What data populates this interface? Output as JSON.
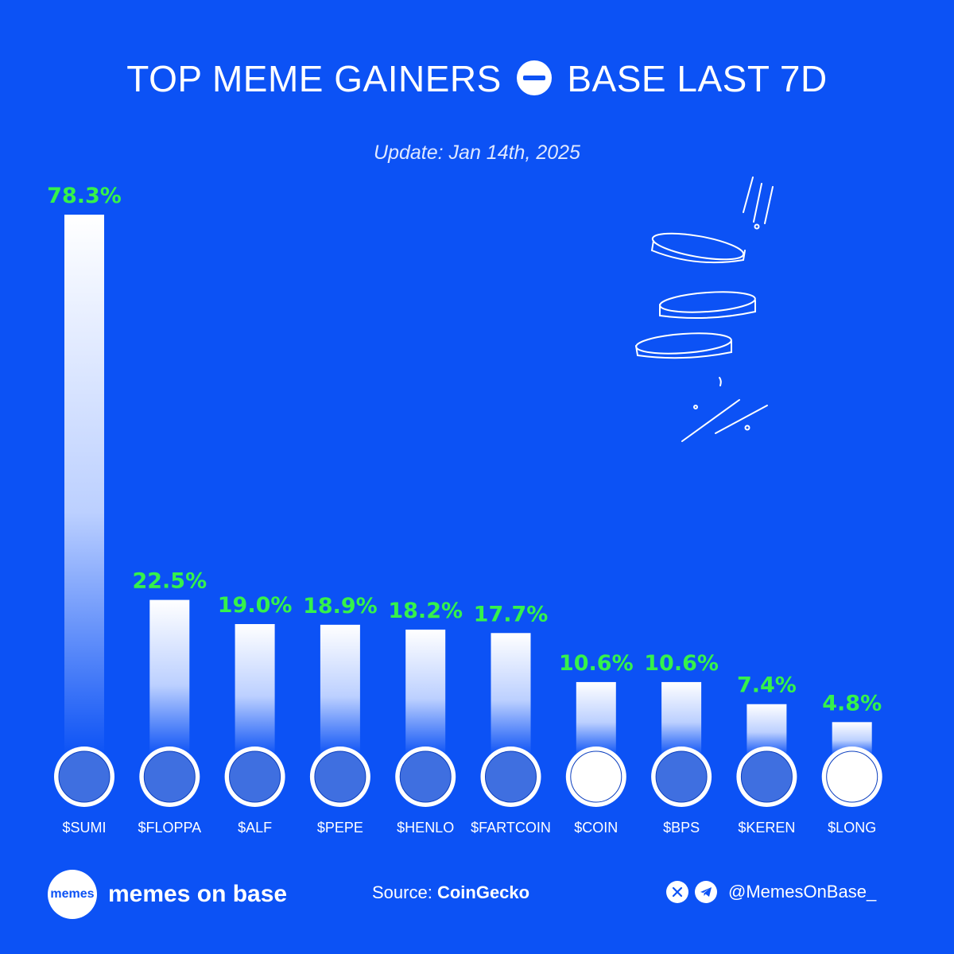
{
  "header": {
    "title_left": "TOP MEME GAINERS",
    "title_right": "BASE LAST 7D",
    "subtitle": "Update: Jan 14th, 2025"
  },
  "chart_data": {
    "type": "bar",
    "title": "TOP MEME GAINERS BASE LAST 7D",
    "categories": [
      "$SUMI",
      "$FLOPPA",
      "$ALF",
      "$PEPE",
      "$HENLO",
      "$FARTCOIN",
      "$COIN",
      "$BPS",
      "$KEREN",
      "$LONG"
    ],
    "values": [
      78.3,
      22.5,
      19.0,
      18.9,
      18.2,
      17.7,
      10.6,
      10.6,
      7.4,
      4.8
    ],
    "value_labels": [
      "78.3%",
      "22.5%",
      "19.0%",
      "18.9%",
      "18.2%",
      "17.7%",
      "10.6%",
      "10.6%",
      "7.4%",
      "4.8%"
    ],
    "xlabel": "",
    "ylabel": "",
    "grid": false,
    "colors": {
      "bar_top": "#ffffff",
      "bar_bottom": "#0c52f5",
      "value_label": "#35f24b"
    },
    "token_icons": [
      "cat-icon",
      "caracal-icon",
      "alf-icon",
      "pepe-icon",
      "henlo-icon",
      "fartcoin-icon",
      "coin-icon",
      "bps-icon",
      "keren-icon",
      "long-icon"
    ]
  },
  "footer": {
    "brand_badge": "memes",
    "brand_name": "memes on base",
    "source_label": "Source:",
    "source_name": "CoinGecko",
    "social_handle": "@MemesOnBase_",
    "social_icons": [
      "x-icon",
      "telegram-icon"
    ]
  },
  "colors": {
    "background": "#0c52f5",
    "accent_green": "#35f24b"
  }
}
